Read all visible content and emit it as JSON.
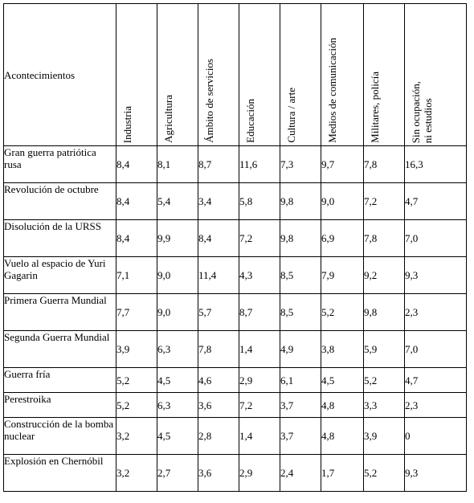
{
  "table": {
    "corner_label": "Acontecimientos",
    "columns": [
      "Industria",
      "Agricultura",
      "Ámbito de servicios",
      "Educación",
      "Cultura / arte",
      "Medios de comunicación",
      "Militares, policía",
      "Sin ocupación,\nni estudios"
    ],
    "rows": [
      {
        "event": "Gran guerra patriótica rusa",
        "values": [
          "8,4",
          "8,1",
          "8,7",
          "11,6",
          "7,3",
          "9,7",
          "7,8",
          "16,3"
        ]
      },
      {
        "event": "Revolución de octubre",
        "values": [
          "8,4",
          "5,4",
          "3,4",
          "5,8",
          "9,8",
          "9,0",
          "7,2",
          "4,7"
        ]
      },
      {
        "event": "Disolución de la URSS",
        "values": [
          "8,4",
          "9,9",
          "8,4",
          "7,2",
          "9,8",
          "6,9",
          "7,8",
          "7,0"
        ]
      },
      {
        "event": "Vuelo al espacio de Yuri Gagarin",
        "values": [
          "7,1",
          "9,0",
          "11,4",
          "4,3",
          "8,5",
          "7,9",
          "9,2",
          "9,3"
        ]
      },
      {
        "event": "Primera Guerra Mundial",
        "values": [
          "7,7",
          "9,0",
          "5,7",
          "8,7",
          "8,5",
          "5,2",
          "9,8",
          "2,3"
        ]
      },
      {
        "event": "Segunda Guerra Mundial",
        "values": [
          "3,9",
          "6,3",
          "7,8",
          "1,4",
          "4,9",
          "3,8",
          "5,9",
          "7,0"
        ]
      },
      {
        "event": "Guerra fría",
        "values": [
          "5,2",
          "4,5",
          "4,6",
          "2,9",
          "6,1",
          "4,5",
          "5,2",
          "4,7"
        ]
      },
      {
        "event": "Perestroika",
        "values": [
          "5,2",
          "6,3",
          "3,6",
          "7,2",
          "3,7",
          "4,8",
          "3,3",
          "2,3"
        ]
      },
      {
        "event": "Construcción de la bomba nuclear",
        "values": [
          "3,2",
          "4,5",
          "2,8",
          "1,4",
          "3,7",
          "4,8",
          "3,9",
          "0"
        ]
      },
      {
        "event": "Explosión en Chernóbil",
        "values": [
          "3,2",
          "2,7",
          "3,6",
          "2,9",
          "2,4",
          "1,7",
          "5,2",
          "9,3"
        ]
      }
    ]
  }
}
